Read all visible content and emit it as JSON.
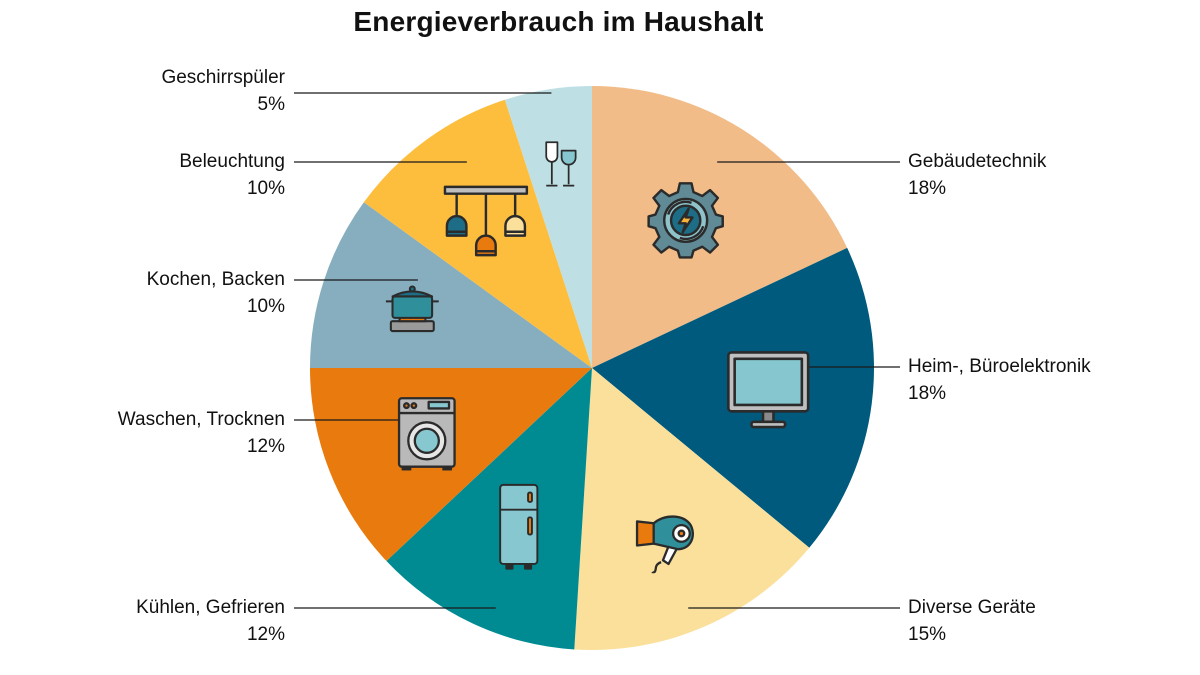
{
  "chart_data": {
    "type": "pie",
    "title": "Energieverbrauch im Haushalt",
    "start_angle_deg": 0,
    "direction": "clockwise",
    "slices": [
      {
        "key": "gebaeudetechnik",
        "label": "Gebäudetechnik",
        "value": 18,
        "value_label": "18%",
        "color": "#F1BC87",
        "icon": "gear-lightning-icon"
      },
      {
        "key": "elektronik",
        "label": "Heim-, Büroelektronik",
        "value": 18,
        "value_label": "18%",
        "color": "#005A7D",
        "icon": "monitor-icon"
      },
      {
        "key": "diverse",
        "label": "Diverse Geräte",
        "value": 15,
        "value_label": "15%",
        "color": "#FBE09C",
        "icon": "hair-dryer-icon"
      },
      {
        "key": "kuehlen",
        "label": "Kühlen, Gefrieren",
        "value": 12,
        "value_label": "12%",
        "color": "#008B93",
        "icon": "fridge-icon"
      },
      {
        "key": "waschen",
        "label": "Waschen, Trocknen",
        "value": 12,
        "value_label": "12%",
        "color": "#E87A0E",
        "icon": "washing-machine-icon"
      },
      {
        "key": "kochen",
        "label": "Kochen, Backen",
        "value": 10,
        "value_label": "10%",
        "color": "#86AEBE",
        "icon": "cooking-pot-icon"
      },
      {
        "key": "beleuchtung",
        "label": "Beleuchtung",
        "value": 10,
        "value_label": "10%",
        "color": "#FDBD3D",
        "icon": "ceiling-lamp-icon"
      },
      {
        "key": "geschirr",
        "label": "Geschirrspüler",
        "value": 5,
        "value_label": "5%",
        "color": "#BEDFE4",
        "icon": "wine-glasses-icon"
      }
    ]
  }
}
